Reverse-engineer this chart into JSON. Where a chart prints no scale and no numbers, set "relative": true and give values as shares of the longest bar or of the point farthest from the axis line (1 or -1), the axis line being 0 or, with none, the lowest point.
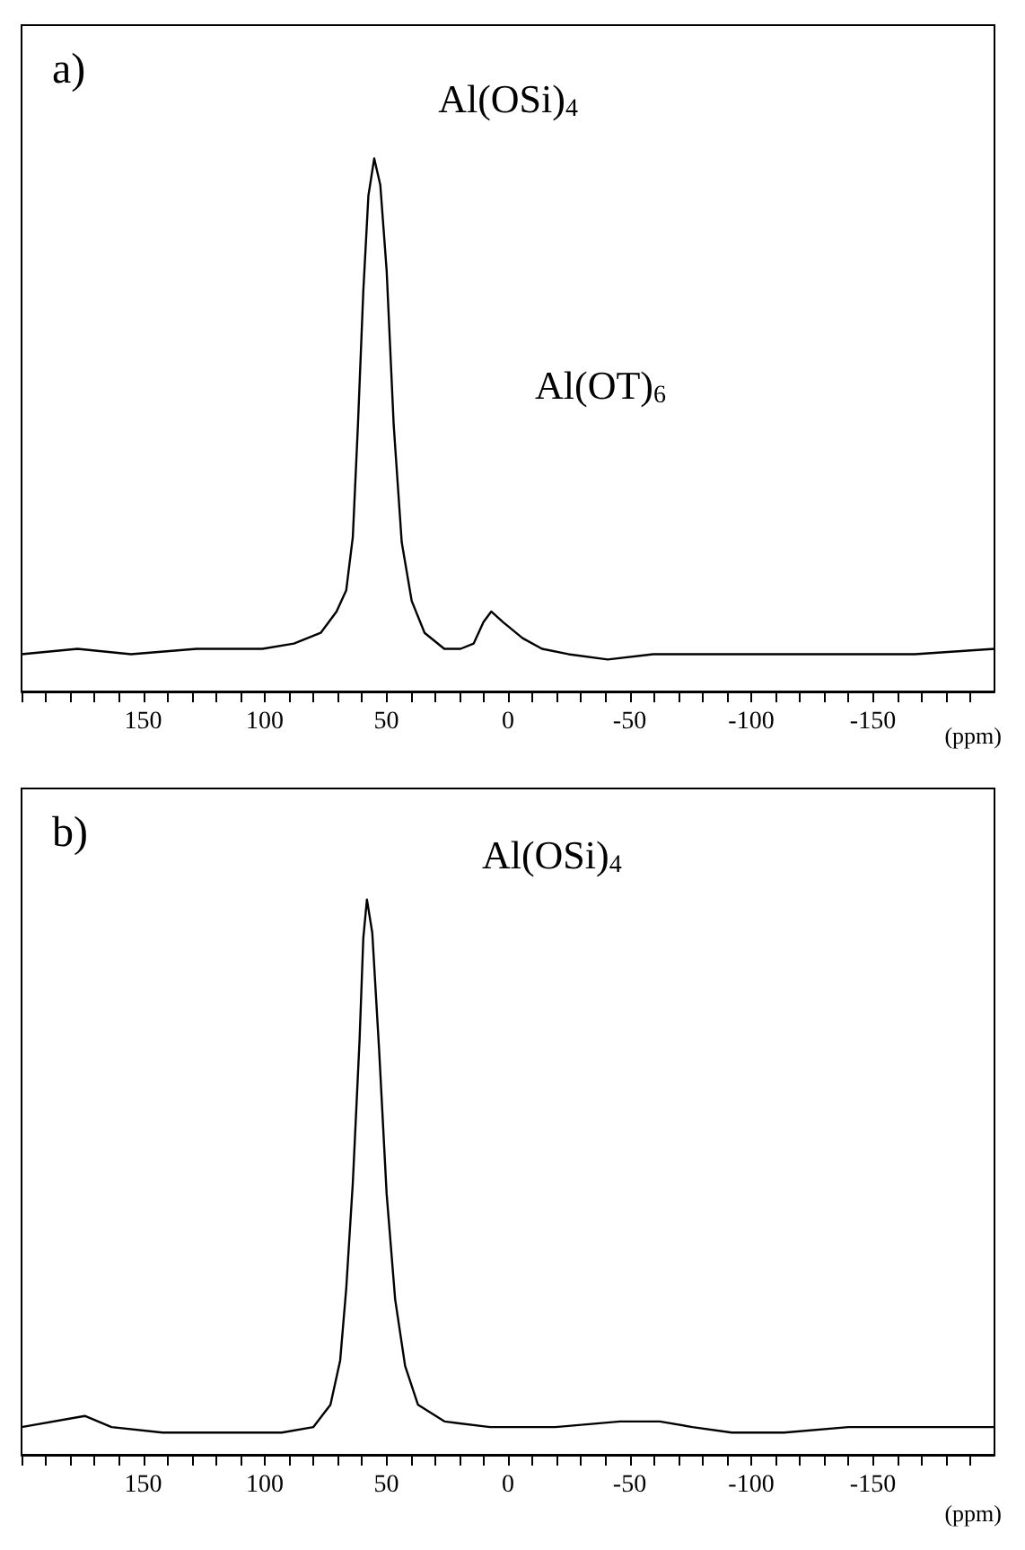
{
  "chart_data": [
    {
      "type": "line",
      "title": "a)",
      "xlabel": "(ppm)",
      "relative": true,
      "tick_labels": "x",
      "marker": "none",
      "xlim": [
        200,
        -200
      ],
      "xticks": [
        {
          "value": 200,
          "label": null
        },
        {
          "value": 190,
          "label": null
        },
        {
          "value": 180,
          "label": null
        },
        {
          "value": 170,
          "label": null
        },
        {
          "value": 160,
          "label": null
        },
        150,
        {
          "value": 140,
          "label": null
        },
        {
          "value": 130,
          "label": null
        },
        {
          "value": 120,
          "label": null
        },
        {
          "value": 110,
          "label": null
        },
        100,
        {
          "value": 90,
          "label": null
        },
        {
          "value": 80,
          "label": null
        },
        {
          "value": 70,
          "label": null
        },
        {
          "value": 60,
          "label": null
        },
        50,
        {
          "value": 40,
          "label": null
        },
        {
          "value": 30,
          "label": null
        },
        {
          "value": 20,
          "label": null
        },
        {
          "value": 10,
          "label": null
        },
        0,
        {
          "value": -10,
          "label": null
        },
        {
          "value": -20,
          "label": null
        },
        {
          "value": -30,
          "label": null
        },
        {
          "value": -40,
          "label": null
        },
        -50,
        {
          "value": -60,
          "label": null
        },
        {
          "value": -70,
          "label": null
        },
        {
          "value": -80,
          "label": null
        },
        {
          "value": -90,
          "label": null
        },
        -100,
        {
          "value": -110,
          "label": null
        },
        {
          "value": -120,
          "label": null
        },
        {
          "value": -130,
          "label": null
        },
        {
          "value": -140,
          "label": null
        },
        -150,
        {
          "value": -160,
          "label": null
        },
        {
          "value": -170,
          "label": null
        },
        {
          "value": -180,
          "label": null
        },
        {
          "value": -190,
          "label": null
        }
      ],
      "annotations": [
        "Al(OSi)$_{4}$",
        "Al(OT)$_{6}$"
      ],
      "series": [
        {
          "color": "#000000",
          "x": [
            200,
            177,
            155,
            128,
            101,
            88,
            77,
            70.5,
            66.5,
            63.8,
            61.7,
            59.5,
            57.4,
            55,
            52.5,
            49.9,
            47,
            43.7,
            39.6,
            34.3,
            26.2,
            19.5,
            14.1,
            10.1,
            6.9,
            2,
            -6,
            -14,
            -24.8,
            -41,
            -59.7,
            -86.6,
            -113.5,
            -140.3,
            -167.2,
            -200
          ],
          "values": [
            0.07,
            0.08,
            0.07,
            0.08,
            0.08,
            0.09,
            0.11,
            0.15,
            0.19,
            0.29,
            0.5,
            0.75,
            0.93,
            1,
            0.95,
            0.79,
            0.5,
            0.28,
            0.17,
            0.11,
            0.08,
            0.08,
            0.09,
            0.13,
            0.15,
            0.13,
            0.1,
            0.08,
            0.07,
            0.06,
            0.07,
            0.07,
            0.07,
            0.07,
            0.07,
            0.08
          ]
        }
      ]
    },
    {
      "type": "line",
      "title": "b)",
      "xlabel": "(ppm)",
      "relative": true,
      "tick_labels": "x",
      "marker": "none",
      "xlim": [
        200,
        -200
      ],
      "xticks": [
        {
          "value": 200,
          "label": null
        },
        {
          "value": 190,
          "label": null
        },
        {
          "value": 180,
          "label": null
        },
        {
          "value": 170,
          "label": null
        },
        {
          "value": 160,
          "label": null
        },
        150,
        {
          "value": 140,
          "label": null
        },
        {
          "value": 130,
          "label": null
        },
        {
          "value": 120,
          "label": null
        },
        {
          "value": 110,
          "label": null
        },
        100,
        {
          "value": 90,
          "label": null
        },
        {
          "value": 80,
          "label": null
        },
        {
          "value": 70,
          "label": null
        },
        {
          "value": 60,
          "label": null
        },
        50,
        {
          "value": 40,
          "label": null
        },
        {
          "value": 30,
          "label": null
        },
        {
          "value": 20,
          "label": null
        },
        {
          "value": 10,
          "label": null
        },
        0,
        {
          "value": -10,
          "label": null
        },
        {
          "value": -20,
          "label": null
        },
        {
          "value": -30,
          "label": null
        },
        {
          "value": -40,
          "label": null
        },
        -50,
        {
          "value": -60,
          "label": null
        },
        {
          "value": -70,
          "label": null
        },
        {
          "value": -80,
          "label": null
        },
        {
          "value": -90,
          "label": null
        },
        -100,
        {
          "value": -110,
          "label": null
        },
        {
          "value": -120,
          "label": null
        },
        {
          "value": -130,
          "label": null
        },
        {
          "value": -140,
          "label": null
        },
        -150,
        {
          "value": -160,
          "label": null
        },
        {
          "value": -170,
          "label": null
        },
        {
          "value": -180,
          "label": null
        },
        {
          "value": -190,
          "label": null
        }
      ],
      "annotations": [
        "Al(OSi)$_{4}$"
      ],
      "series": [
        {
          "color": "#000000",
          "x": [
            200,
            174,
            163,
            142,
            115,
            93,
            80,
            73,
            69,
            66.5,
            63.8,
            61,
            59.5,
            58,
            55.8,
            53,
            49.9,
            46.4,
            42.3,
            37,
            26,
            7.4,
            -19.5,
            -46,
            -62.4,
            -75.8,
            -92,
            -113.5,
            -140,
            -172.6,
            -200
          ],
          "values": [
            0.05,
            0.07,
            0.05,
            0.04,
            0.04,
            0.04,
            0.05,
            0.09,
            0.17,
            0.3,
            0.49,
            0.75,
            0.93,
            1,
            0.94,
            0.73,
            0.47,
            0.28,
            0.16,
            0.09,
            0.06,
            0.05,
            0.05,
            0.06,
            0.06,
            0.05,
            0.04,
            0.04,
            0.05,
            0.05,
            0.05
          ]
        }
      ]
    }
  ]
}
